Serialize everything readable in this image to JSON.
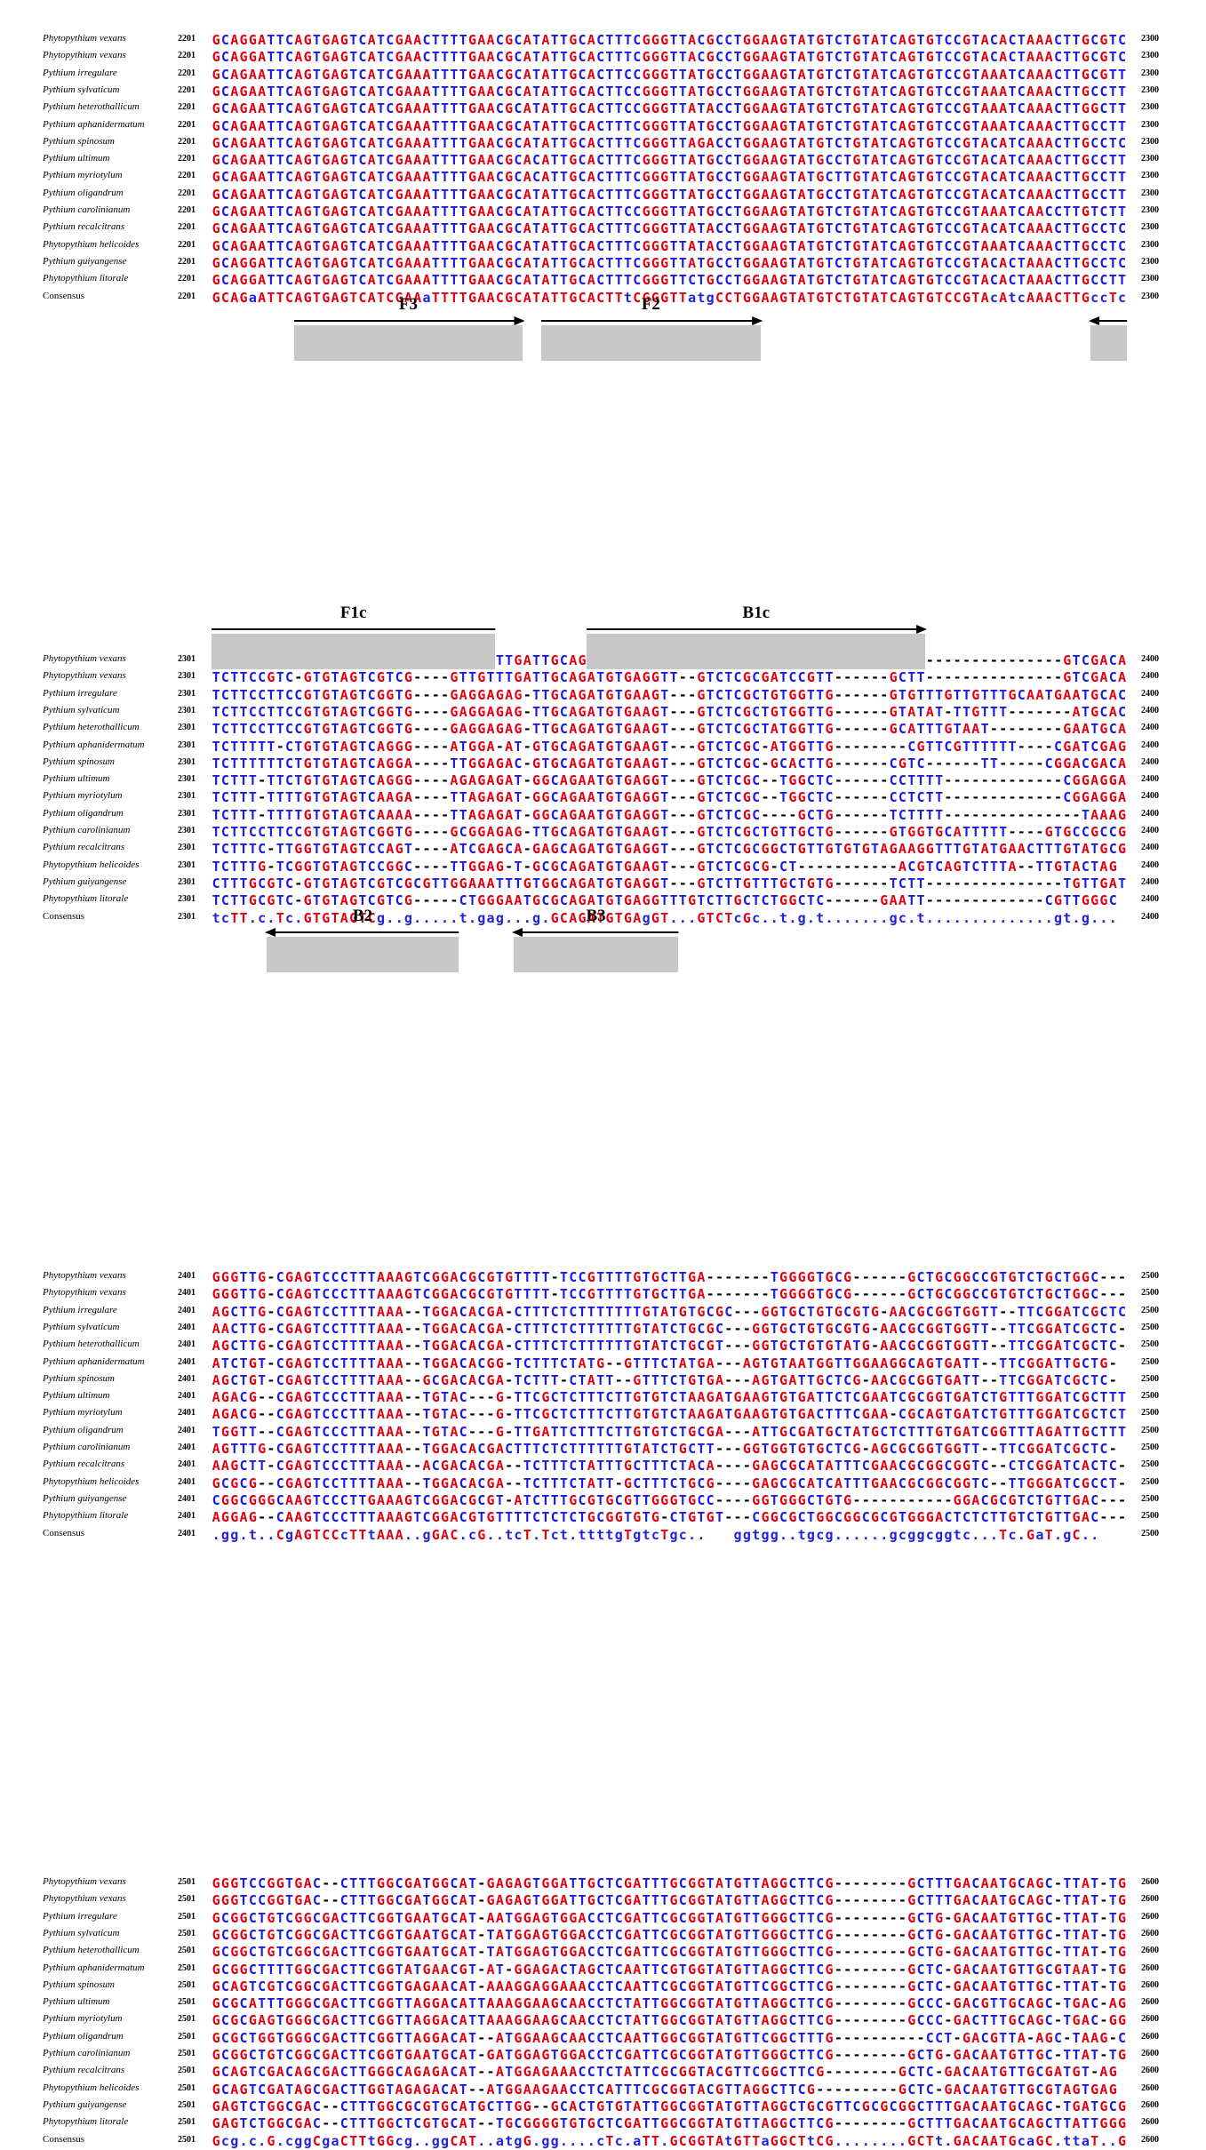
{
  "blocks": [
    {
      "start": "2201",
      "end": "2300",
      "rows": [
        {
          "name": "Phytopythium vexans",
          "seq": "GCAGGATTCAGTGAGTCATCGAACTTTTGAACGCATATTGCACTTTCGGGTTACGCCTGGAAGTATGTCTGTATCAGTGTCCGTACACTAAACTTGCGTC"
        },
        {
          "name": "Phytopythium vexans",
          "seq": "GCAGGATTCAGTGAGTCATCGAACTTTTGAACGCATATTGCACTTTCGGGTTACGCCTGGAAGTATGTCTGTATCAGTGTCCGTACACTAAACTTGCGTC"
        },
        {
          "name": "Pythium irregulare",
          "seq": "GCAGAATTCAGTGAGTCATCGAAATTTTGAACGCATATTGCACTTCCGGGTTATGCCTGGAAGTATGTCTGTATCAGTGTCCGTAAATCAAACTTGCGTT"
        },
        {
          "name": "Pythium sylvaticum",
          "seq": "GCAGAATTCAGTGAGTCATCGAAATTTTGAACGCATATTGCACTTCCGGGTTATGCCTGGAAGTATGTCTGTATCAGTGTCCGTAAATCAAACTTGCCTT"
        },
        {
          "name": "Pythium heterothallicum",
          "seq": "GCAGAATTCAGTGAGTCATCGAAATTTTGAACGCATATTGCACTTCCGGGTTATACCTGGAAGTATGTCTGTATCAGTGTCCGTAAATCAAACTTGGCTT"
        },
        {
          "name": "Pythium aphanidermatum",
          "seq": "GCAGAATTCAGTGAGTCATCGAAATTTTGAACGCATATTGCACTTTCGGGTTATGCCTGGAAGTATGTCTGTATCAGTGTCCGTAAATCAAACTTGCCTT"
        },
        {
          "name": "Pythium spinosum",
          "seq": "GCAGAATTCAGTGAGTCATCGAAATTTTGAACGCATATTGCACTTTCGGGTTAGACCTGGAAGTATGTCTGTATCAGTGTCCGTACATCAAACTTGCCTC"
        },
        {
          "name": "Pythium ultimum",
          "seq": "GCAGAATTCAGTGAGTCATCGAAATTTTGAACGCACATTGCACTTTCGGGTTATGCCTGGAAGTATGCCTGTATCAGTGTCCGTACATCAAACTTGCCTT"
        },
        {
          "name": "Pythium myriotylum",
          "seq": "GCAGAATTCAGTGAGTCATCGAAATTTTGAACGCACATTGCACTTTCGGGTTATGCCTGGAAGTATGCTTGTATCAGTGTCCGTACATCAAACTTGCCTT"
        },
        {
          "name": "Pythium oligandrum",
          "seq": "GCAGAATTCAGTGAGTCATCGAAATTTTGAACGCATATTGCACTTTCGGGTTATGCCTGGAAGTATGCCTGTATCAGTGTCCGTACATCAAACTTGCCTT"
        },
        {
          "name": "Pythium carolinianum",
          "seq": "GCAGAATTCAGTGAGTCATCGAAATTTTGAACGCATATTGCACTTCCGGGTTATGCCTGGAAGTATGTCTGTATCAGTGTCCGTAAATCAACCTTGTCTT"
        },
        {
          "name": "Pythium recalcitrans",
          "seq": "GCAGAATTCAGTGAGTCATCGAAATTTTGAACGCATATTGCACTTTCGGGTTATACCTGGAAGTATGTCTGTATCAGTGTCCGTACATCAAACTTGCCTC"
        },
        {
          "name": "Phytopythium helicoides",
          "seq": "GCAGAATTCAGTGAGTCATCGAAATTTTGAACGCATATTGCACTTTCGGGTTATACCTGGAAGTATGTCTGTATCAGTGTCCGTAAATCAAACTTGCCTC"
        },
        {
          "name": "Pythium guiyangense",
          "seq": "GCAGGATTCAGTGAGTCATCGAAATTTTGAACGCATATTGCACTTTCGGGTTATGCCTGGAAGTATGTCTGTATCAGTGTCCGTACACTAAACTTGCCTC"
        },
        {
          "name": "Phytopythium litorale",
          "seq": "GCAGGATTCAGTGAGTCATCGAAATTTTGAACGCATATTGCACTTTCGGGTTCTGCCTGGAAGTATGTCTGTATCAGTGTCCGTACACTAAACTTGCCTT"
        }
      ],
      "consensus": {
        "name": "Consensus",
        "seq": "GCAGaATTCAGTGAGTCATCGAAaTTTTGAACGCATATTGCACTTtCGGGTTatgCCTGGAAGTATGTCTGTATCAGTGTCCGTAcAtcAAACTTGccTc"
      },
      "primers": []
    },
    {
      "start": "2301",
      "end": "2400",
      "rows": [
        {
          "name": "Phytopythium vexans",
          "seq": "TCTTCCGTC-GTGTAGTCGTCG----GTTGTTTGATTGCAGATGTGAGGTT--GTCTCGCGATCCGTT------GCTT---------------GTCGACA"
        },
        {
          "name": "Phytopythium vexans",
          "seq": "TCTTCCGTC-GTGTAGTCGTCG----GTTGTTTGATTGCAGATGTGAGGTT--GTCTCGCGATCCGTT------GCTT---------------GTCGACA"
        },
        {
          "name": "Pythium irregulare",
          "seq": "TCTTCCTTCCGTGTAGTCGGTG----GAGGAGAG-TTGCAGATGTGAAGT---GTCTCGCTGTGGTTG------GTGTTTGTTGTTTGCAATGAATGCAC"
        },
        {
          "name": "Pythium sylvaticum",
          "seq": "TCTTCCTTCCGTGTAGTCGGTG----GAGGAGAG-TTGCAGATGTGAAGT---GTCTCGCTGTGGTTG------GTATAT-TTGTTT-------ATGCAC"
        },
        {
          "name": "Pythium heterothallicum",
          "seq": "TCTTCCTTCCGTGTAGTCGGTG----GAGGAGAG-TTGCAGATGTGAAGT---GTCTCGCTATGGTTG------GCATTTGTAAT--------GAATGCAC"
        },
        {
          "name": "Pythium aphanidermatum",
          "seq": "TCTTTTT-CTGTGTAGTCAGGG----ATGGA-AT-GTGCAGATGTGAAGT---GTCTCGC-ATGGTTG--------CGTTCGTTTTTT----CGATCGAGA"
        },
        {
          "name": "Pythium spinosum",
          "seq": "TCTTTTTTCTGTGTAGTCAGGA----TTGGAGAC-GTGCAGATGTGAAGT---GTCTCGC-GCACTTG------CGTC------TT-----CGGACGACA"
        },
        {
          "name": "Pythium ultimum",
          "seq": "TCTTT-TTCTGTGTAGTCAGGG----AGAGAGAT-GGCAGAATGTGAGGT---GTCTCGC--TGGCTC------CCTTTT-------------CGGAGGAGA"
        },
        {
          "name": "Pythium myriotylum",
          "seq": "TCTTT-TTTTGTGTAGTCAAGA----TTAGAGAT-GGCAGAATGTGAGGT---GTCTCGC--TGGCTC------CCTCTT-------------CGGAGGAGA"
        },
        {
          "name": "Pythium oligandrum",
          "seq": "TCTTT-TTTTGTGTAGTCAAAA----TTAGAGAT-GGCAGAATGTGAGGT---GTCTCGC----GCTG------TCTTTT---------------TAAAGA"
        },
        {
          "name": "Pythium carolinianum",
          "seq": "TCTTCCTTCCGTGTAGTCGGTG----GCGGAGAG-TTGCAGATGTGAAGT---GTCTCGCTGTTGCTG------GTGGTGCATTTTT----GTGCCGCCG"
        },
        {
          "name": "Pythium recalcitrans",
          "seq": "TCTTTC-TTGGTGTAGTCCAGT----ATCGAGCA-GAGCAGATGTGAGGT---GTCTCGCGGCTGTTGTGTGTAGAAGGTTTGTATGAACTTTGTATGCG"
        },
        {
          "name": "Phytopythium helicoides",
          "seq": "TCTTTG-TCGGTGTAGTCCGGC----TTGGAG-T-GCGCAGATGTGAAGT---GTCTCGCG-CT-----------ACGTCAGTCTTTA--TTGTACTAG"
        },
        {
          "name": "Pythium guiyangense",
          "seq": "CTTTGCGTC-GTGTAGTCGTCGCGTTGGAAATTTGTGGCAGATGTGAGGT---GTCTTGTTTGCTGTG------TCTT---------------TGTTGATG"
        },
        {
          "name": "Phytopythium litorale",
          "seq": "TCTTGCGTC-GTGTAGTCGTCG-----CTGGGAATGCGCAGATGTGAGGTTTGTCTTGCTCTGGCTC------GAATT-------------CGTTGGGC"
        }
      ],
      "consensus": {
        "name": "Consensus",
        "seq": "tcTT.c.Tc.GTGTAGTCg..g.....t.gag...g.GCAGATGTGAgGT...GTCTcGc..t.g.t.......gc.t..............gt.g..."
      },
      "primers": [
        {
          "label": "F3",
          "dir": "right",
          "from": 9,
          "to": 34
        },
        {
          "label": "F2",
          "dir": "right",
          "from": 36,
          "to": 60
        },
        {
          "label": "",
          "dir": "left",
          "from": 96,
          "to": 100
        }
      ]
    },
    {
      "start": "2401",
      "end": "2500",
      "rows": [
        {
          "name": "Phytopythium vexans",
          "seq": "GGGTTG-CGAGTCCCTTTAAAGTCGGACGCGTGTTTT-TCCGTTTTGTGCTTGA-------TGGGGTGCG------GCTGCGGCCGTGTCTGCTGGC---"
        },
        {
          "name": "Phytopythium vexans",
          "seq": "GGGTTG-CGAGTCCCTTTAAAGTCGGACGCGTGTTTT-TCCGTTTTGTGCTTGA-------TGGGGTGCG------GCTGCGGCCGTGTCTGCTGGC---"
        },
        {
          "name": "Pythium irregulare",
          "seq": "AGCTTG-CGAGTCCTTTTAAA--TGGACACGA-CTTTCTCTTTTTTTGTATGTGCGC---GGTGCTGTGCGTG-AACGCGGTGGTT--TTCGGATCGCTC-"
        },
        {
          "name": "Pythium sylvaticum",
          "seq": "AACTTG-CGAGTCCTTTTAAA--TGGACACGA-CTTTCTCTTTTTTGTATCTGCGC---GGTGCTGTGCGTG-AACGCGGTGGTT--TTCGGATCGCTC-"
        },
        {
          "name": "Pythium heterothallicum",
          "seq": "AGCTTG-CGAGTCCTTTTAAA--TGGACACGA-CTTTCTCTTTTTTGTATCTGCGT---GGTGCTGTGTATG-AACGCGGTGGTT--TTCGGATCGCTC-"
        },
        {
          "name": "Pythium aphanidermatum",
          "seq": "ATCTGT-CGAGTCCTTTTAAA--TGGACACGG-TCTTTCTATG--GTTTCTATGA---AGTGTAATGGTTGGAAGGCAGTGATT--TTCGGATTGCTG-"
        },
        {
          "name": "Pythium spinosum",
          "seq": "AGCTGT-CGAGTCCTTTTAAA--GCGACACGA-TCTTT-CTATT--GTTTCTGTGA---AGTGATTGCTCG-AACGCGGTGATT--TTCGGATCGCTC-"
        },
        {
          "name": "Pythium ultimum",
          "seq": "AGACG--CGAGTCCCTTTAAA--TGTAC---G-TTCGCTCTTTCTTGTGTCTAAGATGAAGTGTGATTCTCGAATCGCGGTGATCTGTTTGGATCGCTTT"
        },
        {
          "name": "Pythium myriotylum",
          "seq": "AGACG--CGAGTCCCTTTAAA--TGTAC---G-TTCGCTCTTTCTTGTGTCTAAGATGAAGTGTGACTTTCGAA-CGCAGTGATCTGTTTGGATCGCTCT"
        },
        {
          "name": "Pythium oligandrum",
          "seq": "TGGTT--CGAGTCCCTTTAAA--TGTAC---G-TTGATTCTTTCTTGTGTCTGCGA---ATTGCGATGCTATGCTCTTTGTGATCGGTTTAGATTGCTTT"
        },
        {
          "name": "Pythium carolinianum",
          "seq": "AGTTTG-CGAGTCCTTTTAAA--TGGACACGACTTTCTCTTTTTTGTATCTGCTT---GGTGGTGTGCTCG-AGCGCGGTGGTT--TTCGGATCGCTC-"
        },
        {
          "name": "Pythium recalcitrans",
          "seq": "AAGCTT-CGAGTCCCTTTAAA--ACGACACGA--TCTTTCTATTTGCTTTCTACA----GAGCGCATATTTCGAACGCGGCGGTC--CTCGGATCACTC-"
        },
        {
          "name": "Phytopythium helicoides",
          "seq": "GCGCG--CGAGTCCTTTTAAA--TGGACACGA--TCTTTCTATT-GCTTTCTGCG----GAGCGCATCATTTGAACGCGGCGGTC--TTGGGATCGCCT-"
        },
        {
          "name": "Pythium guiyangense",
          "seq": "CGGCGGGCAAGTCCCTTGAAAGTCGGACGCGT-ATCTTTGCGTGCGTTGGGTGCC----GGTGGGCTGTG-----------GGACGCGTCTGTTGAC---"
        },
        {
          "name": "Phytopythium litorale",
          "seq": "AGGAG--CAAGTCCCTTTAAAGTCGGACGTGTTTTCTCTCTGCGGTGTG-CTGTGT---CGGCGCTGGCGGCGCGTGGGACTCTCTTGTCTGTTGAC---"
        }
      ],
      "consensus": {
        "name": "Consensus",
        "seq": ".gg.t..CgAGTCCcTTtAAA..gGAC.cG..tcT.Tct.ttttgTgtcTgc..   ggtgg..tgcg......gcggcggtc...Tc.GaT.gC.."
      },
      "primers": [
        {
          "label": "F1c",
          "dir": "line",
          "from": 0,
          "to": 31
        },
        {
          "label": "B1c",
          "dir": "right",
          "from": 41,
          "to": 78
        }
      ]
    },
    {
      "start": "2501",
      "end": "2600",
      "rows": [
        {
          "name": "Phytopythium vexans",
          "seq": "GGGTCCGGTGAC--CTTTGGCGATGGCAT-GAGAGTGGATTGCTCGATTTGCGGTATGTTAGGCTTCG--------GCTTTGACAATGCAGC-TTAT-TG"
        },
        {
          "name": "Phytopythium vexans",
          "seq": "GGGTCCGGTGAC--CTTTGGCGATGGCAT-GAGAGTGGATTGCTCGATTTGCGGTATGTTAGGCTTCG--------GCTTTGACAATGCAGC-TTAT-TG"
        },
        {
          "name": "Pythium irregulare",
          "seq": "GCGGCTGTCGGCGACTTCGGTGAATGCAT-AATGGAGTGGACCTCGATTCGCGGTATGTTGGGCTTCG--------GCTG-GACAATGTTGC-TTAT-TG"
        },
        {
          "name": "Pythium sylvaticum",
          "seq": "GCGGCTGTCGGCGACTTCGGTGAATGCAT-TATGGAGTGGACCTCGATTCGCGGTATGTTGGGCTTCG--------GCTG-GACAATGTTGC-TTAT-TG"
        },
        {
          "name": "Pythium heterothallicum",
          "seq": "GCGGCTGTCGGCGACTTCGGTGAATGCAT-TATGGAGTGGACCTCGATTCGCGGTATGTTGGGCTTCG--------GCTG-GACAATGTTGC-TTAT-TG"
        },
        {
          "name": "Pythium aphanidermatum",
          "seq": "GCGGCTTTTGGCGACTTCGGTATGAACGT-AT-GGAGACTAGCTCAATTCGTGGTATGTTAGGCTTCG--------GCTC-GACAATGTTGCGTAAT-TG"
        },
        {
          "name": "Pythium spinosum",
          "seq": "GCAGTCGTCGGCGACTTCGGTGAGAACAT-AAAGGAGGAAACCTCAATTCGCGGTATGTTCGGCTTCG--------GCTC-GACAATGTTGC-TTAT-TG"
        },
        {
          "name": "Pythium ultimum",
          "seq": "GCGCATTTGGGCGACTTCGGTTAGGACATTAAAGGAAGCAACCTCTATTGGCGGTATGTTAGGCTTCG--------GCCC-GACGTTGCAGC-TGAC-AG"
        },
        {
          "name": "Pythium myriotylum",
          "seq": "GCGCGAGTGGGCGACTTCGGTTAGGACATTAAAGGAAGCAACCTCTATTGGCGGTATGTTAGGCTTCG--------GCCC-GACTTTGCAGC-TGAC-GG"
        },
        {
          "name": "Pythium oligandrum",
          "seq": "GCGCTGGTGGGCGACTTCGGTTAGGACAT--ATGGAAGCAACCTCAATTGGCGGTATGTTCGGCTTTG----------CCT-GACGTTA-AGC-TAAG-CG"
        },
        {
          "name": "Pythium carolinianum",
          "seq": "GCGGCTGTCGGCGACTTCGGTGAATGCAT-GATGGAGTGGACCTCGATTCGCGGTATGTTGGGCTTCG--------GCTG-GACAATGTTGC-TTAT-TG"
        },
        {
          "name": "Pythium recalcitrans",
          "seq": "GCAGTCGACAGCGACTTGGGCAGAGACAT--ATGGAGAAACCTCTATTCGCGGTACGTTCGGCTTCG--------GCTC-GACAATGTTGCGATGT-AG"
        },
        {
          "name": "Phytopythium helicoides",
          "seq": "GCAGTCGATAGCGACTTGGTAGAGACAT--ATGGAAGAACCTCATTTCGCGGTACGTTAGGCTTCG---------GCTC-GACAATGTTGCGTAGTGAG"
        },
        {
          "name": "Pythium guiyangense",
          "seq": "GAGTCTGGCGAC--CTTTGGCGCGTGCATGCTTGG--GCACTGTGTATTGGCGGTATGTTAGGCTGCGTTCGCGCGGCTTTGACAATGCAGC-TGATGCG"
        },
        {
          "name": "Phytopythium litorale",
          "seq": "GAGTCTGGCGAC--CTTTGGCTCGTGCAT--TGCGGGGTGTGCTCGATTGGCGGTATGTTAGGCTTCG--------GCTTTGACAATGCAGCTTATTGGG"
        }
      ],
      "consensus": {
        "name": "Consensus",
        "seq": "Gcg.c.G.cggCgaCTTtGGcg..ggCAT..atgG.gg....cTc.aTT.GCGGTAtGTTaGGCTtCG........GCTt.GACAATGcaGC.ttaT..G"
      },
      "primers": [
        {
          "label": "B2",
          "dir": "left",
          "from": 6,
          "to": 27
        },
        {
          "label": "B3",
          "dir": "left",
          "from": 33,
          "to": 51
        }
      ]
    }
  ]
}
